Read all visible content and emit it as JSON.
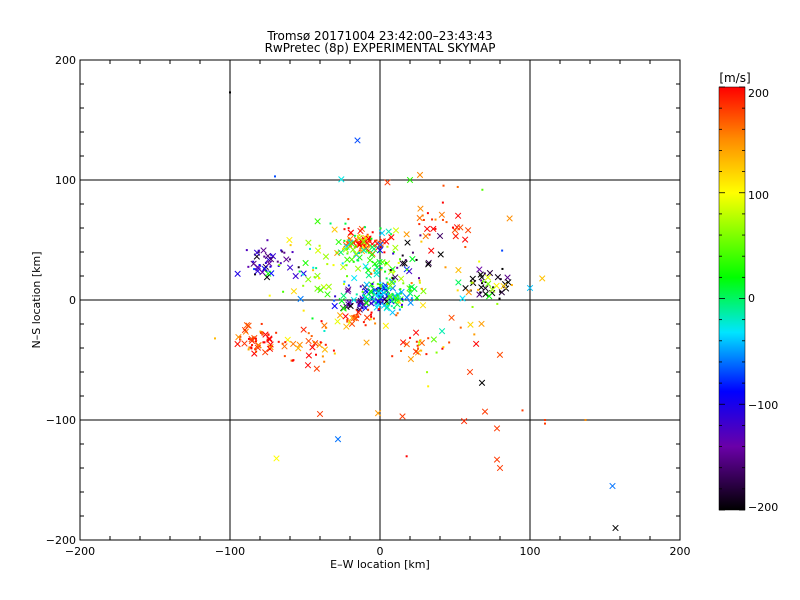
{
  "chart_data": {
    "type": "scatter",
    "title": "Tromsø 20171004 23:42:00–23:43:43",
    "subtitle": "RwPretec (8p) EXPERIMENTAL SKYMAP",
    "xlabel": "E–W location [km]",
    "ylabel": "N–S location [km]",
    "xlim": [
      -200,
      200
    ],
    "ylim": [
      -200,
      200
    ],
    "x_ticks": [
      "−200",
      "−100",
      "0",
      "100",
      "200"
    ],
    "y_ticks": [
      "−200",
      "−100",
      "0",
      "100",
      "200"
    ],
    "grid": "major gridlines at ±100 km and 0",
    "colorbar": {
      "label": "[m/s]",
      "range": [
        -200,
        200
      ],
      "ticks": [
        "200",
        "100",
        "0",
        "−100",
        "−200"
      ],
      "colormap": "black-purple-blue-cyan-green-yellow-red"
    },
    "markers": "cross (×) and dot",
    "clusters": [
      {
        "cx": -10,
        "cy": 48,
        "sx": 8,
        "sy": 6,
        "v": 180,
        "n": 70
      },
      {
        "cx": -15,
        "cy": 40,
        "sx": 6,
        "sy": 8,
        "v": 20,
        "n": 30
      },
      {
        "cx": 3,
        "cy": 20,
        "sx": 8,
        "sy": 12,
        "v": 40,
        "n": 40
      },
      {
        "cx": 0,
        "cy": 5,
        "sx": 8,
        "sy": 6,
        "v": -60,
        "n": 70
      },
      {
        "cx": -15,
        "cy": 0,
        "sx": 8,
        "sy": 6,
        "v": -130,
        "n": 35
      },
      {
        "cx": 10,
        "cy": 5,
        "sx": 8,
        "sy": 6,
        "v": 10,
        "n": 35
      },
      {
        "cx": -15,
        "cy": -15,
        "sx": 10,
        "sy": 4,
        "v": 170,
        "n": 30
      },
      {
        "cx": -75,
        "cy": 30,
        "sx": 10,
        "sy": 8,
        "v": -130,
        "n": 45
      },
      {
        "cx": -80,
        "cy": -35,
        "sx": 7,
        "sy": 6,
        "v": 185,
        "n": 50
      },
      {
        "cx": 75,
        "cy": 12,
        "sx": 8,
        "sy": 6,
        "v": -200,
        "n": 30
      },
      {
        "cx": 70,
        "cy": 8,
        "sx": 10,
        "sy": 8,
        "v": 90,
        "n": 15
      },
      {
        "cx": 40,
        "cy": 65,
        "sx": 12,
        "sy": 12,
        "v": 180,
        "n": 25
      },
      {
        "cx": -40,
        "cy": 30,
        "sx": 12,
        "sy": 12,
        "v": 60,
        "n": 30
      },
      {
        "cx": -45,
        "cy": -40,
        "sx": 12,
        "sy": 10,
        "v": 170,
        "n": 30
      },
      {
        "cx": 25,
        "cy": -35,
        "sx": 12,
        "sy": 12,
        "v": 160,
        "n": 25
      },
      {
        "cx": 20,
        "cy": 35,
        "sx": 10,
        "sy": 10,
        "v": -180,
        "n": 20
      },
      {
        "cx": -10,
        "cy": 20,
        "sx": 30,
        "sy": 30,
        "v": 0,
        "n": 45
      },
      {
        "cx": 30,
        "cy": 0,
        "sx": 40,
        "sy": 40,
        "v": 150,
        "n": 40
      }
    ],
    "outliers": [
      {
        "x": -15,
        "y": 133,
        "v": -70,
        "m": "x"
      },
      {
        "x": -70,
        "y": 103,
        "v": -70,
        "m": "d"
      },
      {
        "x": -100,
        "y": 173,
        "v": -200,
        "m": "d"
      },
      {
        "x": 5,
        "y": 98,
        "v": 180,
        "m": "x"
      },
      {
        "x": 20,
        "y": 100,
        "v": 30,
        "m": "x"
      },
      {
        "x": -69,
        "y": -132,
        "v": 100,
        "m": "x"
      },
      {
        "x": 155,
        "y": -155,
        "v": -60,
        "m": "x"
      },
      {
        "x": 157,
        "y": -190,
        "v": -200,
        "m": "x"
      },
      {
        "x": 100,
        "y": 10,
        "v": -40,
        "m": "x"
      },
      {
        "x": 78,
        "y": -133,
        "v": 180,
        "m": "x"
      },
      {
        "x": 80,
        "y": -140,
        "v": 180,
        "m": "x"
      },
      {
        "x": 68,
        "y": -69,
        "v": -200,
        "m": "x"
      },
      {
        "x": -28,
        "y": -116,
        "v": -60,
        "m": "x"
      },
      {
        "x": 78,
        "y": -107,
        "v": 180,
        "m": "x"
      },
      {
        "x": 70,
        "y": -93,
        "v": 180,
        "m": "x"
      },
      {
        "x": 15,
        "y": -97,
        "v": 180,
        "m": "x"
      },
      {
        "x": -40,
        "y": -95,
        "v": 180,
        "m": "x"
      },
      {
        "x": 95,
        "y": -92,
        "v": 180,
        "m": "d"
      },
      {
        "x": 110,
        "y": -103,
        "v": 180,
        "m": "d"
      },
      {
        "x": 137,
        "y": -100,
        "v": 150,
        "m": "d"
      },
      {
        "x": -110,
        "y": -32,
        "v": 130,
        "m": "d"
      },
      {
        "x": -90,
        "y": -25,
        "v": 180,
        "m": "x"
      },
      {
        "x": 60,
        "y": -60,
        "v": 180,
        "m": "x"
      },
      {
        "x": 110,
        "y": -100,
        "v": 180,
        "m": "d"
      }
    ]
  }
}
